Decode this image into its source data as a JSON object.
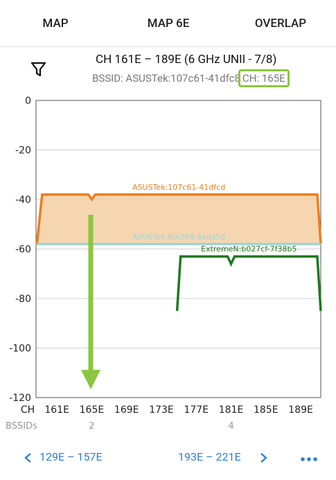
{
  "tabs": [
    "MAP",
    "MAP 6E",
    "OVERLAP"
  ],
  "active_tab": 2,
  "header": {
    "title": "CH 161E – 189E (6 GHz UNII - 7/8)",
    "bssid": "BSSID: ASUSTek:107c61-41dfc8",
    "channel": "CH: 165E"
  },
  "chart_data": {
    "type": "line",
    "x_label": "CH",
    "xlim": [
      158.6,
      191.3
    ],
    "xticks": [
      {
        "value": 161,
        "label": "161E"
      },
      {
        "value": 165,
        "label": "165E"
      },
      {
        "value": 169,
        "label": "169E"
      },
      {
        "value": 173,
        "label": "173E"
      },
      {
        "value": 177,
        "label": "177E"
      },
      {
        "value": 181,
        "label": "181E"
      },
      {
        "value": 185,
        "label": "185E"
      },
      {
        "value": 189,
        "label": "189E"
      }
    ],
    "ylim": [
      -120,
      0
    ],
    "yticks": [
      0,
      -20,
      -40,
      -60,
      -80,
      -100,
      -120
    ],
    "grid": true,
    "series": [
      {
        "name": "ASUSTek:107c61-41dfcd",
        "color": "#ef7d1a",
        "fill": "#f5cfa3",
        "x": [
          158.7,
          159.3,
          164.6,
          165,
          165.4,
          190.9,
          191.3
        ],
        "values": [
          -58,
          -38,
          -38,
          -40,
          -38,
          -38,
          -58
        ]
      },
      {
        "name": "ASUSTek:60cf84-3ada58",
        "color": "#9fd3d3",
        "x": [
          158.7,
          191.3
        ],
        "values": [
          -58,
          -58
        ]
      },
      {
        "name": "ExtremeN:b027cf-7f38b5",
        "color": "#1e7a1e",
        "x": [
          174.8,
          175.2,
          180.6,
          181,
          181.4,
          190.9,
          191.3
        ],
        "values": [
          -85,
          -63,
          -63,
          -66,
          -63,
          -63,
          -85
        ]
      }
    ],
    "bssid_counts": {
      "label": "BSSIDs",
      "x": [
        165,
        181
      ],
      "values": [
        2,
        4
      ]
    }
  },
  "footer": {
    "prev": "129E – 157E",
    "next": "193E – 221E"
  }
}
